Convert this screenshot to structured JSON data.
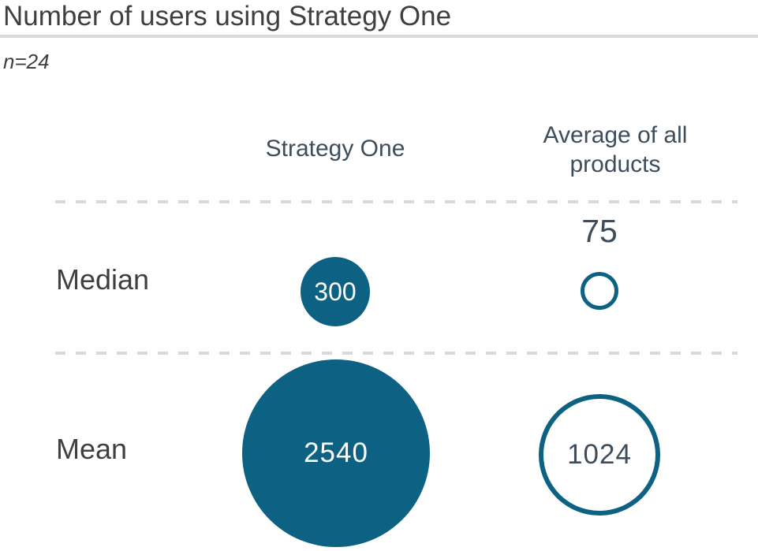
{
  "chart_data": {
    "type": "bubble",
    "title": "Number of users using Strategy One",
    "sample_size_note": "n=24",
    "columns": [
      {
        "label": "Strategy One",
        "bubble_style": "filled"
      },
      {
        "label": "Average of all products",
        "bubble_style": "outlined"
      }
    ],
    "rows": [
      {
        "label": "Median",
        "values": [
          300,
          75
        ]
      },
      {
        "label": "Mean",
        "values": [
          2540,
          1024
        ]
      }
    ],
    "value_scaling": "bubble area proportional to value",
    "colors": {
      "bubble_fill": "#0d6284",
      "bubble_outline": "#0d6284",
      "value_text_on_fill": "#ffffff",
      "value_text_dark": "#3e4d5c",
      "heading_text": "#3f3f3f",
      "divider": "#d9d9d9"
    }
  }
}
